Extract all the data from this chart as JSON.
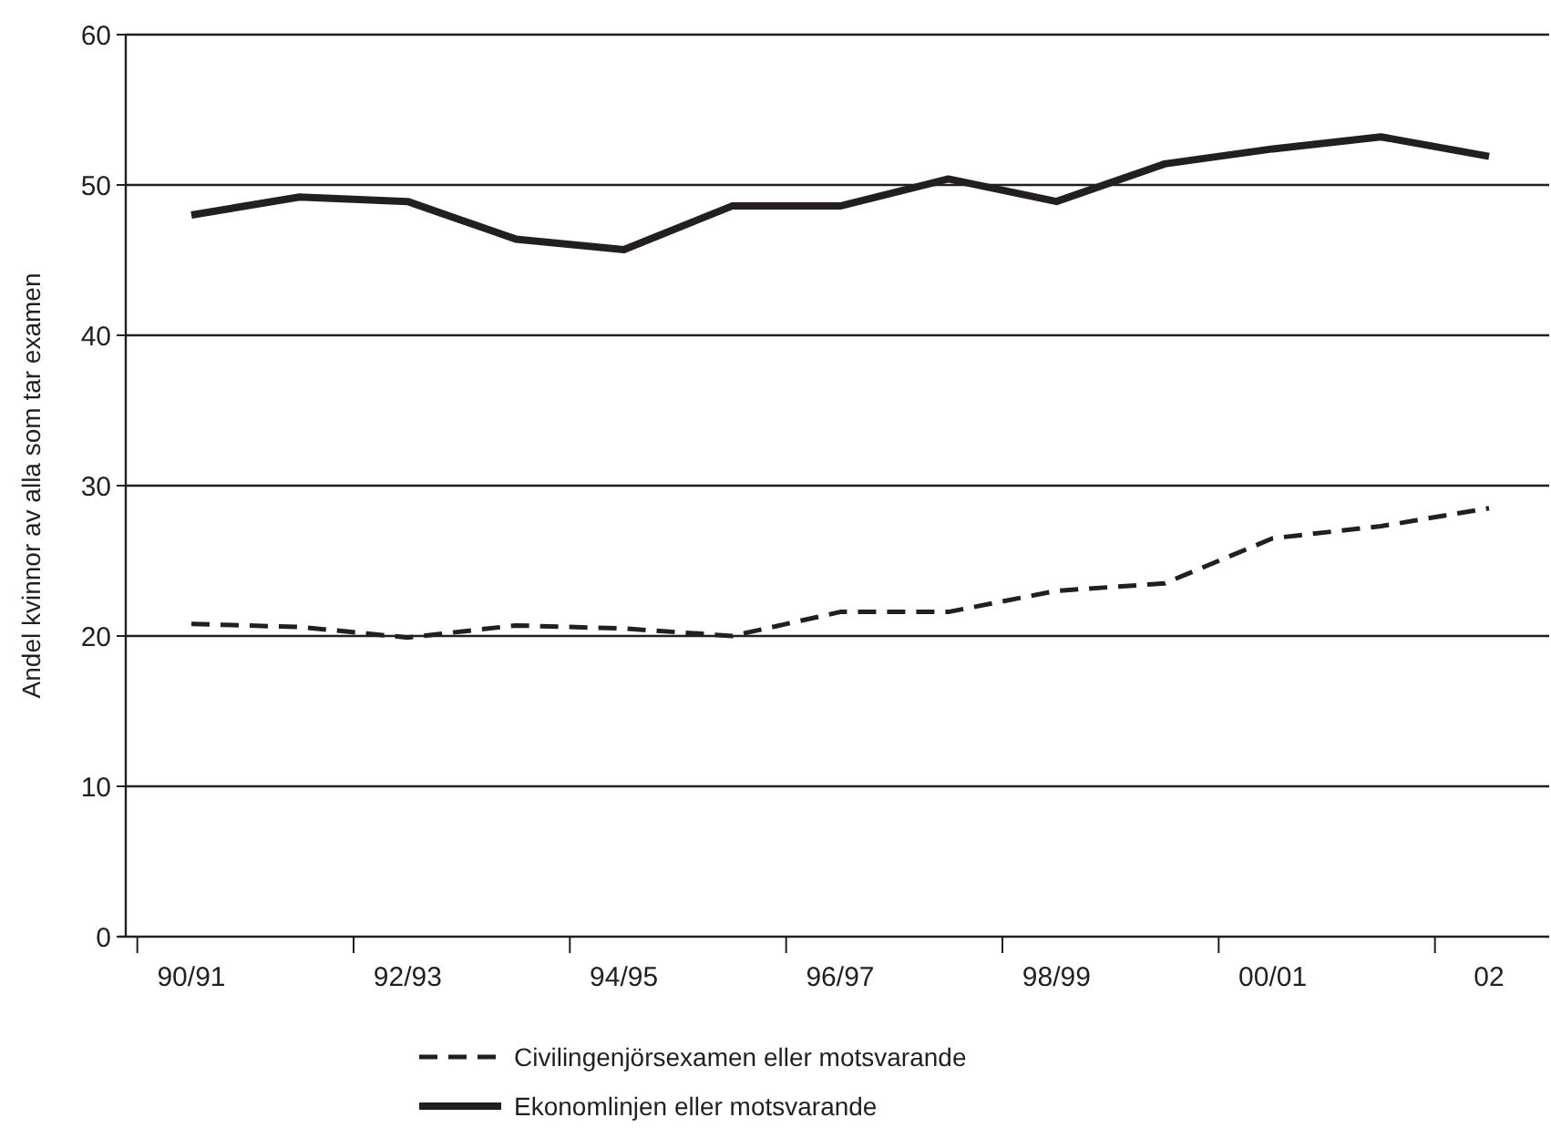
{
  "chart_data": {
    "type": "line",
    "ylabel": "Andel kvinnor av alla som tar examen",
    "categories": [
      "90/91",
      null,
      "92/93",
      null,
      "94/95",
      null,
      "96/97",
      null,
      "98/99",
      null,
      "00/01",
      null,
      "02"
    ],
    "ylim": [
      0,
      60
    ],
    "yticks": [
      0,
      10,
      20,
      30,
      40,
      50,
      60
    ],
    "grid": "y",
    "legend": "bottom",
    "series": [
      {
        "name": "Civilingenjörsexamen eller motsvarande",
        "color": "#231f20",
        "line_style": "dashed",
        "values": [
          20.8,
          20.6,
          19.9,
          20.7,
          20.5,
          20.0,
          21.6,
          21.6,
          23.0,
          23.5,
          26.5,
          27.3,
          28.5
        ]
      },
      {
        "name": "Ekonomlinjen eller motsvarande",
        "color": "#231f20",
        "line_style": "solid",
        "values": [
          48.0,
          49.2,
          48.9,
          46.4,
          45.7,
          48.6,
          48.6,
          50.4,
          48.9,
          51.4,
          52.4,
          53.2,
          51.9
        ]
      }
    ]
  }
}
